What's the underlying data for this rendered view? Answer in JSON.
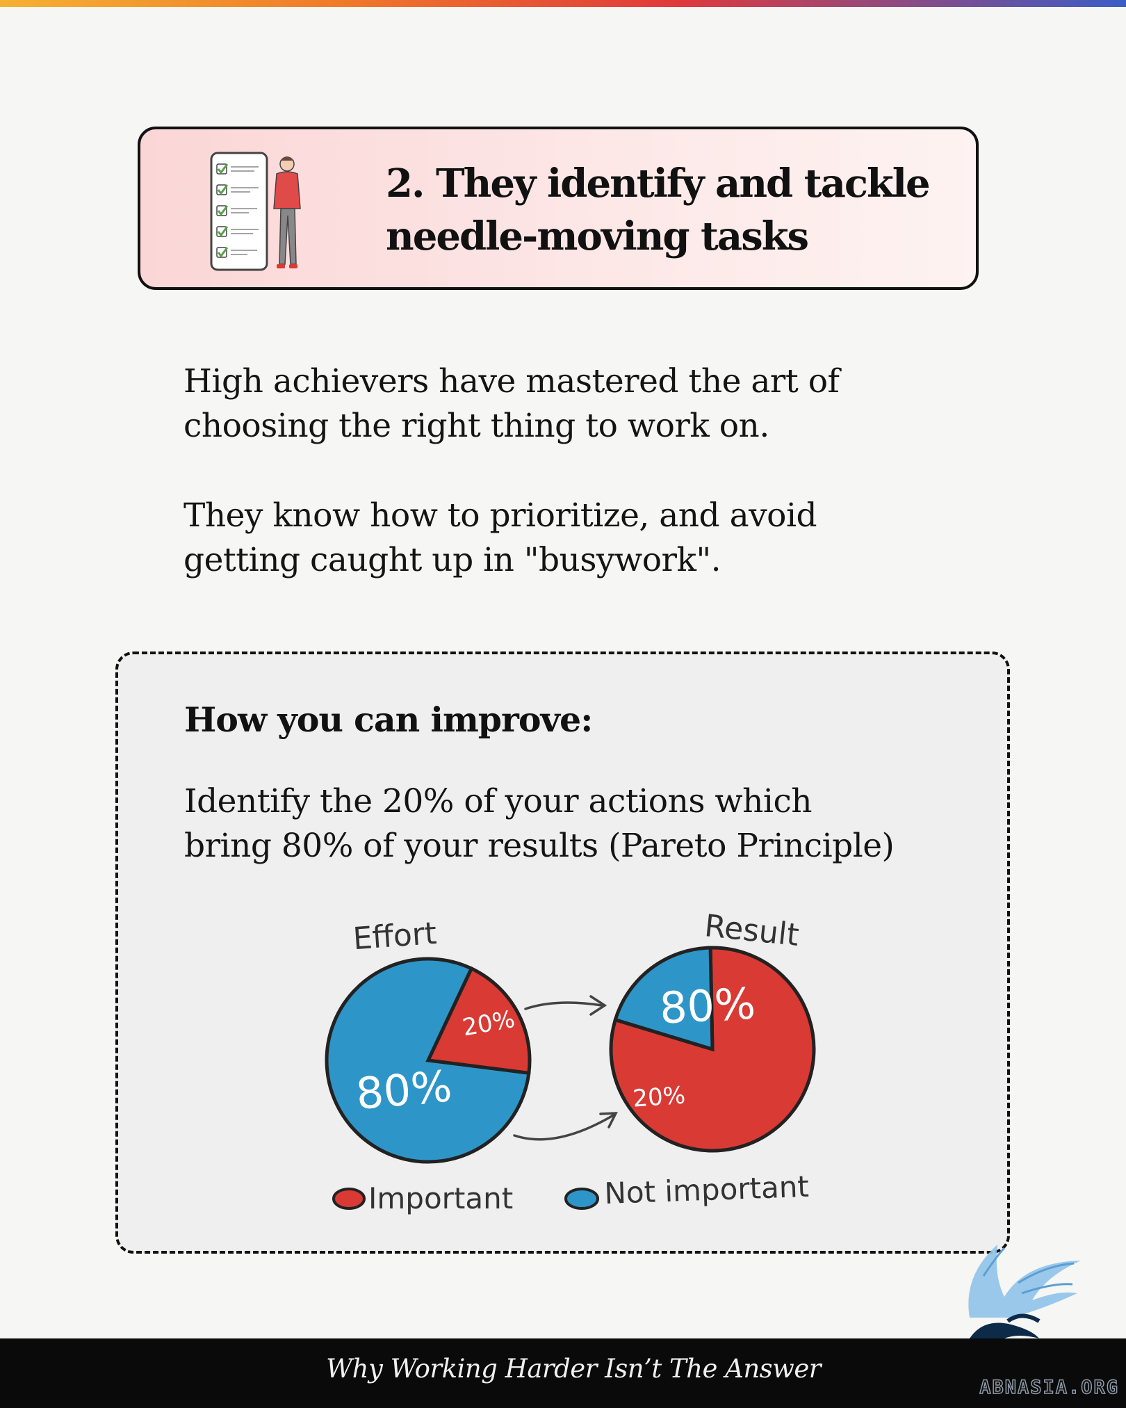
{
  "title_card": {
    "title_line1": "2. They identify and tackle",
    "title_line2": "needle-moving tasks",
    "illustration_icon": "checklist-person-icon"
  },
  "body": {
    "para1_line1": "High achievers have mastered the art of",
    "para1_line2": "choosing the right thing to work on.",
    "para2_line1": "They know how to prioritize, and avoid",
    "para2_line2": "getting caught up in \"busywork\"."
  },
  "improve": {
    "heading": "How you can improve:",
    "text_line1": "Identify the 20% of your actions which",
    "text_line2": "bring 80% of your results (Pareto Principle)"
  },
  "chart_data": [
    {
      "type": "pie",
      "title": "Effort",
      "slices": [
        {
          "label": "20%",
          "value": 20,
          "category": "Important",
          "color": "#d93a34"
        },
        {
          "label": "80%",
          "value": 80,
          "category": "Not important",
          "color": "#2e95c8"
        }
      ]
    },
    {
      "type": "pie",
      "title": "Result",
      "slices": [
        {
          "label": "80%",
          "value": 80,
          "category": "Important",
          "color": "#d93a34"
        },
        {
          "label": "20%",
          "value": 20,
          "category": "Not important",
          "color": "#2e95c8"
        }
      ]
    }
  ],
  "legend": [
    {
      "label": "Important",
      "color": "#d93a34"
    },
    {
      "label": "Not important",
      "color": "#2e95c8"
    }
  ],
  "footer": {
    "caption": "Why Working Harder Isn’t The Answer",
    "brand": "ABNASIA.ORG",
    "logo_icon": "griffin-logo-icon"
  },
  "colors": {
    "accent_red": "#d93a34",
    "accent_blue": "#2e95c8",
    "title_card_bg": "#fbd6d6"
  }
}
